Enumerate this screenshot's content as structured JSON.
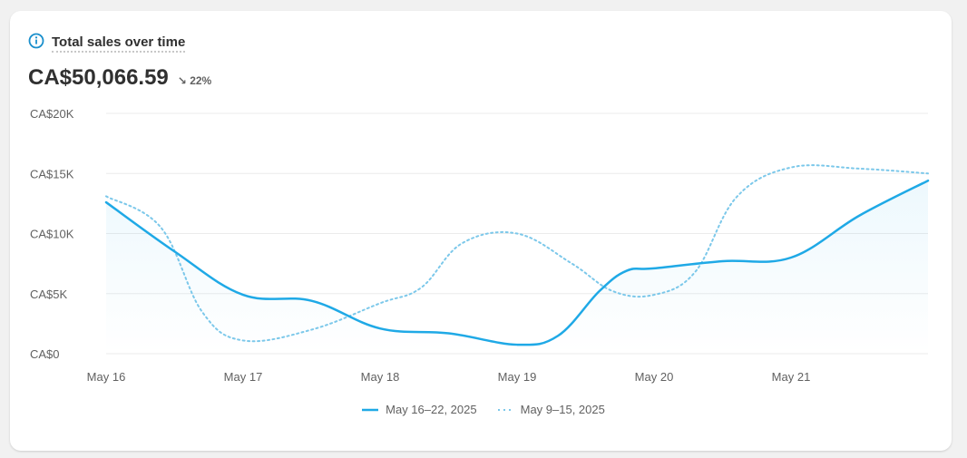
{
  "card": {
    "title": "Total sales over time",
    "total_value": "CA$50,066.59",
    "change": "22%",
    "change_direction": "down",
    "info_icon": "info-circle-icon"
  },
  "chart_data": {
    "type": "line",
    "title": "Total sales over time",
    "x_tick_labels": [
      "May 16",
      "May 17",
      "May 18",
      "May 19",
      "May 20",
      "May 21"
    ],
    "y_tick_labels": [
      "CA$0",
      "CA$5K",
      "CA$10K",
      "CA$15K",
      "CA$20K"
    ],
    "y_ticks": [
      0,
      5000,
      10000,
      15000,
      20000
    ],
    "ylim": [
      0,
      20000
    ],
    "xlim": [
      0,
      6
    ],
    "grid": true,
    "legend_position": "bottom",
    "series": [
      {
        "name": "May 16–22, 2025",
        "style": "solid",
        "color": "#1fa9e6",
        "x": [
          0,
          0.5,
          1,
          1.5,
          2,
          2.5,
          3,
          3.3,
          3.6,
          3.8,
          4,
          4.5,
          5,
          5.5,
          6
        ],
        "values": [
          12600,
          8500,
          4900,
          4400,
          2100,
          1700,
          750,
          1500,
          5200,
          6900,
          7100,
          7700,
          8000,
          11500,
          14400
        ]
      },
      {
        "name": "May 9–15, 2025",
        "style": "dotted",
        "color": "#7cc8ea",
        "x": [
          0,
          0.4,
          0.7,
          1,
          1.5,
          2,
          2.3,
          2.6,
          3,
          3.4,
          3.7,
          4,
          4.3,
          4.6,
          5,
          5.5,
          6
        ],
        "values": [
          13100,
          10500,
          3500,
          1100,
          2000,
          4200,
          5500,
          9200,
          10000,
          7500,
          5200,
          4900,
          6800,
          13000,
          15500,
          15400,
          15000
        ]
      }
    ]
  }
}
